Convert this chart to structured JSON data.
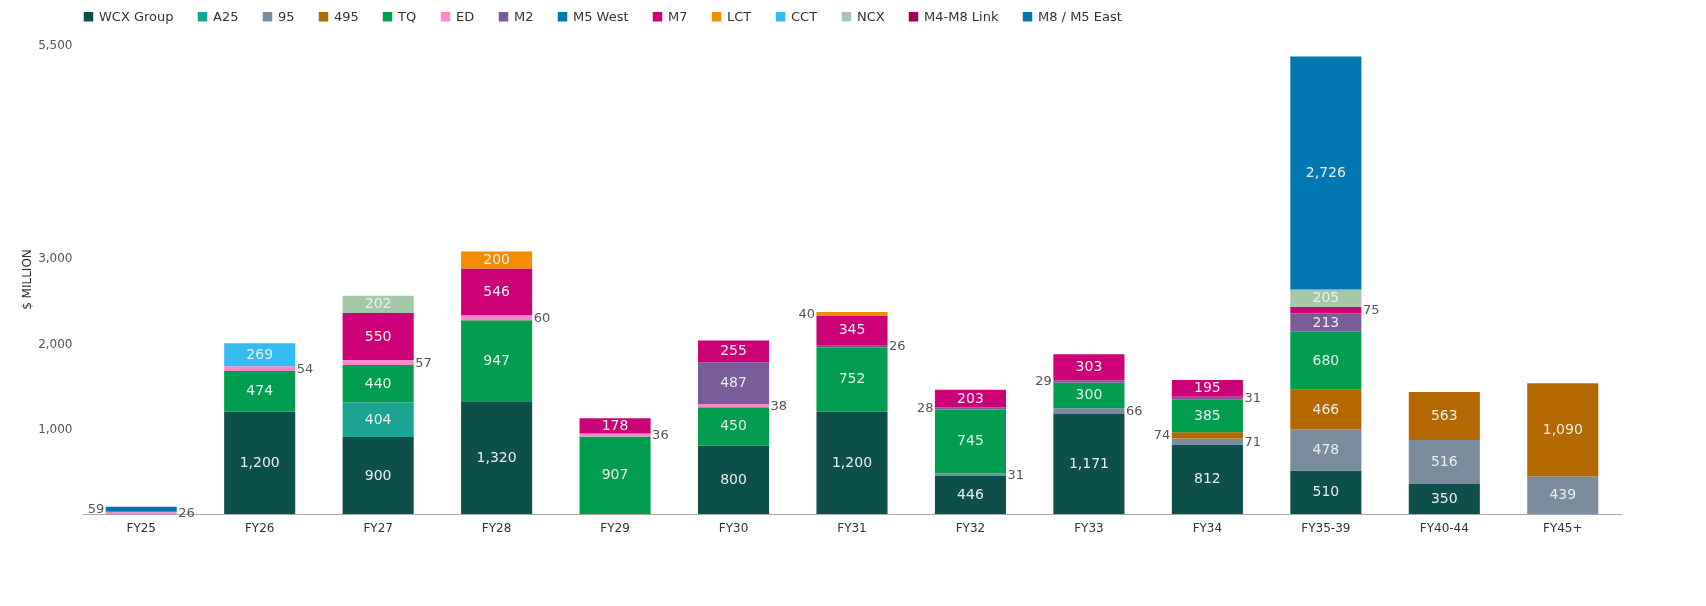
{
  "chart_data": {
    "type": "bar",
    "stacked": true,
    "ylabel": "$ MILLION",
    "categories": [
      "FY25",
      "FY26",
      "FY27",
      "FY28",
      "FY29",
      "FY30",
      "FY31",
      "FY32",
      "FY33",
      "FY34",
      "FY35-39",
      "FY40-44",
      "FY45+"
    ],
    "ylim": [
      0,
      5500
    ],
    "yticks": [
      {
        "value": 1000,
        "label": "1,000"
      },
      {
        "value": 2000,
        "label": "2,000"
      },
      {
        "value": 3000,
        "label": "3,000"
      },
      {
        "value": 5500,
        "label": "5,500"
      }
    ],
    "grid": false,
    "legend": "top",
    "series": [
      {
        "name": "WCX Group",
        "color": "#0d4f4a",
        "values": [
          null,
          1200,
          900,
          1320,
          null,
          800,
          1200,
          446,
          1171,
          812,
          510,
          350,
          null
        ],
        "value_labels": [
          null,
          "1,200",
          "900",
          "1,320",
          null,
          "800",
          "1,200",
          "446",
          "1,171",
          "812",
          "510",
          "350",
          null
        ]
      },
      {
        "name": "A25",
        "color": "#1aa392",
        "values": [
          null,
          null,
          404,
          null,
          null,
          null,
          null,
          null,
          null,
          null,
          null,
          null,
          null
        ],
        "value_labels": [
          null,
          null,
          "404",
          null,
          null,
          null,
          null,
          null,
          null,
          null,
          null,
          null,
          null
        ]
      },
      {
        "name": "95",
        "color": "#7a8c9e",
        "values": [
          null,
          null,
          null,
          null,
          null,
          null,
          null,
          31,
          66,
          71,
          478,
          516,
          439
        ],
        "value_labels": [
          null,
          null,
          null,
          null,
          null,
          null,
          null,
          "31",
          "66",
          "71",
          "478",
          "516",
          "439"
        ]
      },
      {
        "name": "495",
        "color": "#b36800",
        "values": [
          null,
          null,
          null,
          null,
          null,
          null,
          null,
          null,
          null,
          74,
          466,
          563,
          1090
        ],
        "value_labels": [
          null,
          null,
          null,
          null,
          null,
          null,
          null,
          null,
          null,
          "74",
          "466",
          "563",
          "1,090"
        ]
      },
      {
        "name": "TQ",
        "color": "#009d4e",
        "values": [
          null,
          474,
          440,
          947,
          907,
          450,
          752,
          745,
          300,
          385,
          680,
          null,
          null
        ],
        "value_labels": [
          null,
          "474",
          "440",
          "947",
          "907",
          "450",
          "752",
          "745",
          "300",
          "385",
          "680",
          null,
          null
        ]
      },
      {
        "name": "ED",
        "color": "#ff88cc",
        "values": [
          26,
          54,
          57,
          60,
          36,
          38,
          null,
          null,
          null,
          null,
          null,
          null,
          null
        ],
        "value_labels": [
          "26",
          "54",
          "57",
          "60",
          "36",
          "38",
          null,
          null,
          null,
          null,
          null,
          null,
          null
        ]
      },
      {
        "name": "M2",
        "color": "#7a5c99",
        "values": [
          null,
          null,
          null,
          null,
          null,
          487,
          26,
          28,
          29,
          31,
          213,
          null,
          null
        ],
        "value_labels": [
          null,
          null,
          null,
          null,
          null,
          "487",
          "26",
          "28",
          "29",
          "31",
          "213",
          null,
          null
        ]
      },
      {
        "name": "M5 West",
        "color": "#0077b0",
        "values": [
          59,
          null,
          null,
          null,
          null,
          null,
          null,
          null,
          null,
          null,
          null,
          null,
          null
        ],
        "value_labels": [
          "59",
          null,
          null,
          null,
          null,
          null,
          null,
          null,
          null,
          null,
          null,
          null,
          null
        ]
      },
      {
        "name": "M7",
        "color": "#cc0077",
        "values": [
          null,
          null,
          550,
          546,
          178,
          255,
          345,
          203,
          303,
          195,
          75,
          null,
          null
        ],
        "value_labels": [
          null,
          null,
          "550",
          "546",
          "178",
          "255",
          "345",
          "203",
          "303",
          "195",
          "75",
          null,
          null
        ]
      },
      {
        "name": "LCT",
        "color": "#f28c00",
        "values": [
          null,
          null,
          null,
          200,
          null,
          null,
          40,
          null,
          null,
          null,
          null,
          null,
          null
        ],
        "value_labels": [
          null,
          null,
          null,
          "200",
          null,
          null,
          "40",
          null,
          null,
          null,
          null,
          null,
          null
        ]
      },
      {
        "name": "CCT",
        "color": "#33bbf0",
        "values": [
          null,
          269,
          null,
          null,
          null,
          null,
          null,
          null,
          null,
          null,
          null,
          null,
          null
        ],
        "value_labels": [
          null,
          "269",
          null,
          null,
          null,
          null,
          null,
          null,
          null,
          null,
          null,
          null,
          null
        ]
      },
      {
        "name": "NCX",
        "color": "#a3c9a8",
        "values": [
          null,
          null,
          202,
          null,
          null,
          null,
          null,
          null,
          null,
          null,
          205,
          null,
          null
        ],
        "value_labels": [
          null,
          null,
          "202",
          null,
          null,
          null,
          null,
          null,
          null,
          null,
          "205",
          null,
          null
        ]
      },
      {
        "name": "M4-M8 Link",
        "color": "#a0005a",
        "values": [
          null,
          null,
          null,
          null,
          null,
          null,
          null,
          null,
          null,
          null,
          null,
          null,
          null
        ]
      },
      {
        "name": "M8 / M5 East",
        "color": "#0077b0",
        "values": [
          null,
          null,
          null,
          null,
          null,
          null,
          null,
          null,
          null,
          null,
          2726,
          null,
          null
        ],
        "value_labels": [
          null,
          null,
          null,
          null,
          null,
          null,
          null,
          null,
          null,
          null,
          "2,726",
          null,
          null
        ]
      }
    ]
  }
}
